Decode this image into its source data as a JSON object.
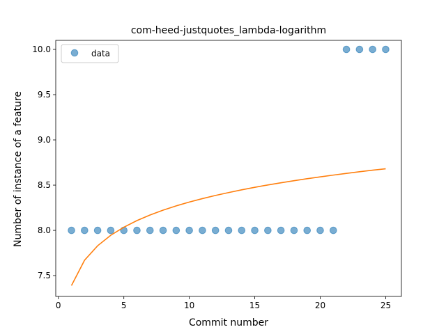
{
  "chart_data": {
    "type": "scatter",
    "title": "com-heed-justquotes_lambda-logarithm",
    "xlabel": "Commit number",
    "ylabel": "Number of instance of a feature",
    "xlim": [
      -0.2,
      26.2
    ],
    "ylim": [
      7.27,
      10.1
    ],
    "xticks": [
      0,
      5,
      10,
      15,
      20,
      25
    ],
    "yticks": [
      7.5,
      8.0,
      8.5,
      9.0,
      9.5,
      10.0
    ],
    "ytick_labels": [
      "7.5",
      "8.0",
      "8.5",
      "9.0",
      "9.5",
      "10.0"
    ],
    "grid": false,
    "legend_position": "top-left",
    "series": [
      {
        "name": "data",
        "kind": "scatter",
        "color": "#1f77b4",
        "x": [
          1,
          2,
          3,
          4,
          5,
          6,
          7,
          8,
          9,
          10,
          11,
          12,
          13,
          14,
          15,
          16,
          17,
          18,
          19,
          20,
          21,
          22,
          23,
          24,
          25
        ],
        "y": [
          8,
          8,
          8,
          8,
          8,
          8,
          8,
          8,
          8,
          8,
          8,
          8,
          8,
          8,
          8,
          8,
          8,
          8,
          8,
          8,
          8,
          10,
          10,
          10,
          10
        ]
      },
      {
        "kind": "line",
        "color": "#ff7f0e",
        "x": [
          1,
          2,
          3,
          4,
          5,
          6,
          7,
          8,
          9,
          10,
          11,
          12,
          13,
          14,
          15,
          16,
          17,
          18,
          19,
          20,
          21,
          22,
          23,
          24,
          25
        ],
        "y": [
          7.39,
          7.67,
          7.83,
          7.946,
          8.035,
          8.108,
          8.17,
          8.224,
          8.271,
          8.313,
          8.351,
          8.386,
          8.418,
          8.448,
          8.476,
          8.502,
          8.526,
          8.549,
          8.571,
          8.591,
          8.611,
          8.63,
          8.648,
          8.665,
          8.681
        ]
      }
    ]
  }
}
